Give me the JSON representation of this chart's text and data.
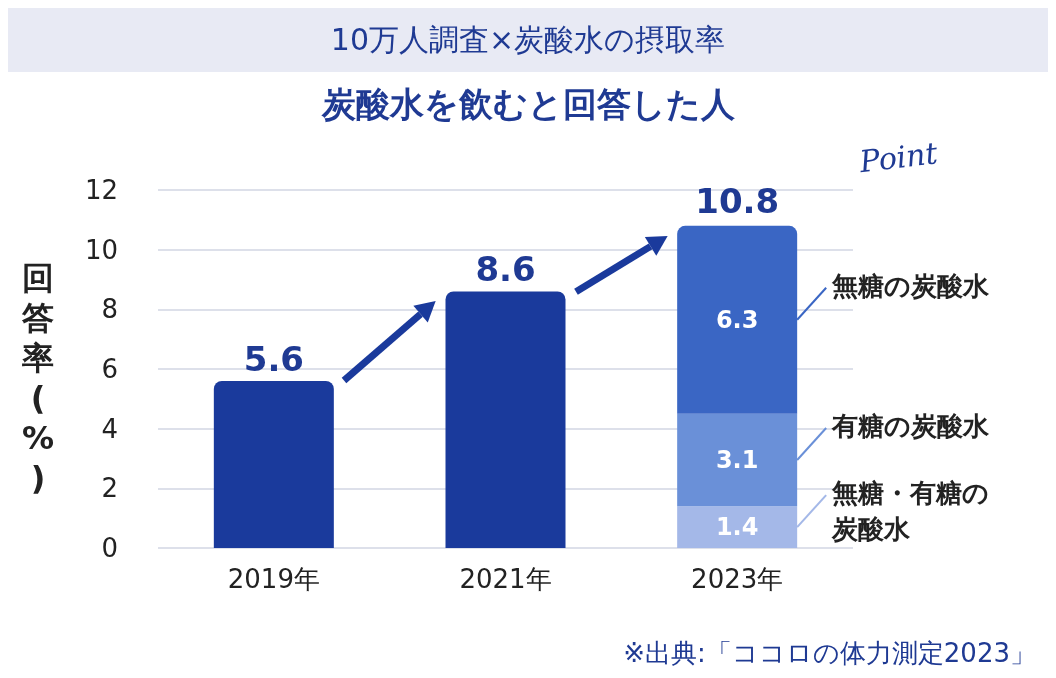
{
  "chart_data": {
    "type": "bar",
    "title": "10万人調査×炭酸水の摂取率",
    "subtitle": "炭酸水を飲むと回答した人",
    "ylabel": "回答率(%)",
    "categories": [
      "2019年",
      "2021年",
      "2023年"
    ],
    "series": [
      {
        "color": "#1a3a9c",
        "values": [
          5.6,
          8.6,
          null
        ]
      },
      {
        "name": "無糖・有糖の炭酸水",
        "color": "#a4b8e8",
        "values": [
          null,
          null,
          1.4
        ]
      },
      {
        "name": "有糖の炭酸水",
        "color": "#6a90d8",
        "values": [
          null,
          null,
          3.1
        ]
      },
      {
        "name": "無糖の炭酸水",
        "color": "#3a66c4",
        "values": [
          null,
          null,
          6.3
        ]
      }
    ],
    "stacked": true,
    "totals": [
      null,
      null,
      "10.8"
    ],
    "data_labels": true,
    "ylim": [
      0,
      12
    ],
    "yticks": [
      0,
      2,
      4,
      6,
      8,
      10,
      12
    ],
    "grid": "y",
    "legend": "right",
    "annotations": [
      "Point",
      "※出典:「ココロの体力測定2023」"
    ]
  }
}
